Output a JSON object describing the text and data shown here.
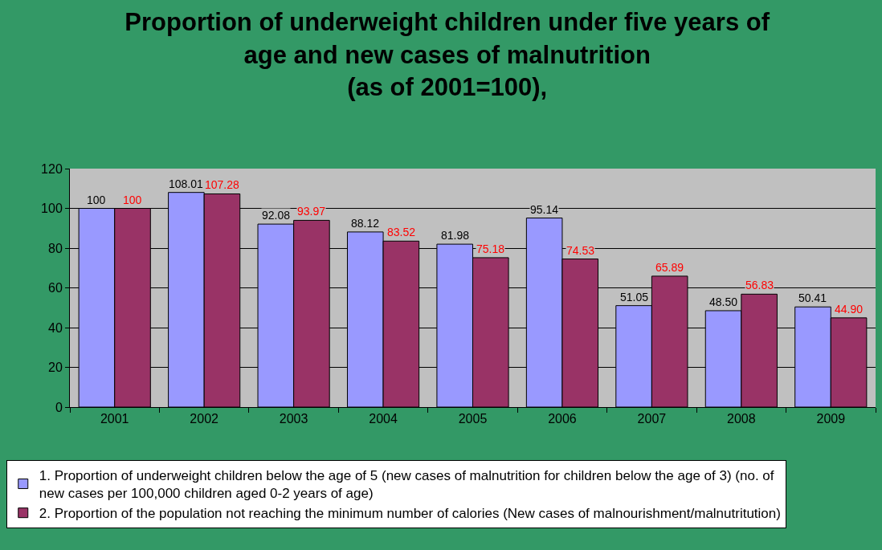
{
  "chart_data": {
    "type": "bar",
    "title": "Proportion of underweight children under five years of\nage and new cases of malnutrition\n(as of 2001=100),",
    "categories": [
      "2001",
      "2002",
      "2003",
      "2004",
      "2005",
      "2006",
      "2007",
      "2008",
      "2009"
    ],
    "series": [
      {
        "name": "1. Proportion of underweight children below the age of 5 (new cases of malnutrition for children below the age of 3) (no. of new cases per 100,000 children aged 0-2 years of age)",
        "color": "#9999ff",
        "values": [
          100,
          108.01,
          92.08,
          88.12,
          81.98,
          95.14,
          51.05,
          48.5,
          50.41
        ],
        "value_labels": [
          "100",
          "108.01",
          "92.08",
          "88.12",
          "81.98",
          "95.14",
          "51.05",
          "48.50",
          "50.41"
        ]
      },
      {
        "name": "2. Proportion of the population not reaching the minimum number of calories (New cases of malnourishment/malnutritution)",
        "color": "#993366",
        "values": [
          100,
          107.28,
          93.97,
          83.52,
          75.18,
          74.53,
          65.89,
          56.83,
          44.9
        ],
        "value_labels": [
          "100",
          "107.28",
          "93.97",
          "83.52",
          "75.18",
          "74.53",
          "65.89",
          "56.83",
          "44.90"
        ]
      }
    ],
    "ylim": [
      0,
      120
    ],
    "yticks": [
      0,
      20,
      40,
      60,
      80,
      100,
      120
    ],
    "grid": "y",
    "legend": "bottom"
  }
}
